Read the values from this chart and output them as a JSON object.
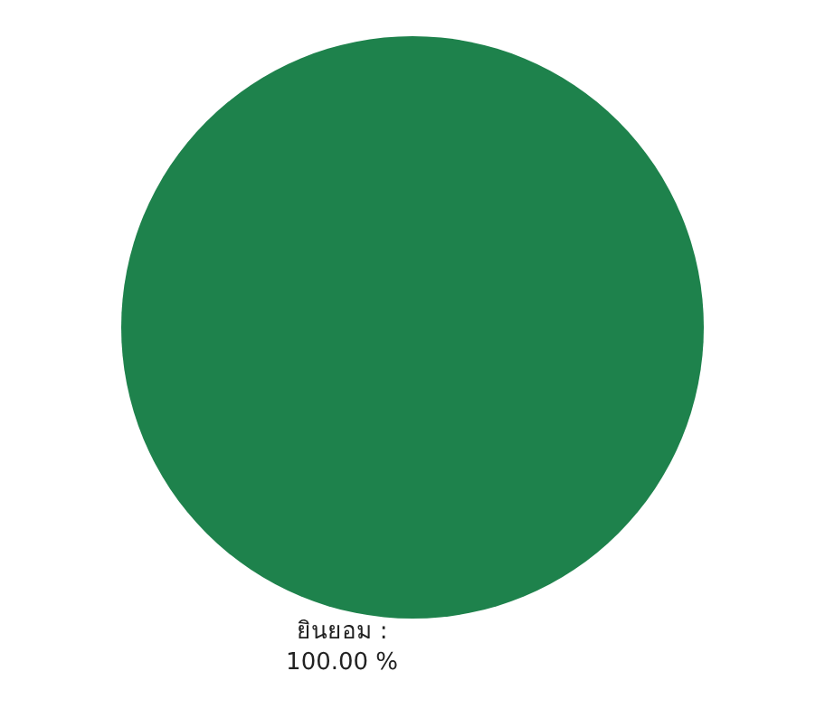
{
  "chart_data": {
    "type": "pie",
    "categories": [
      "ยินยอม"
    ],
    "values": [
      100
    ],
    "colors": [
      "#1e824c"
    ],
    "value_labels": [
      ":\n100.00 %"
    ],
    "legend": false
  }
}
